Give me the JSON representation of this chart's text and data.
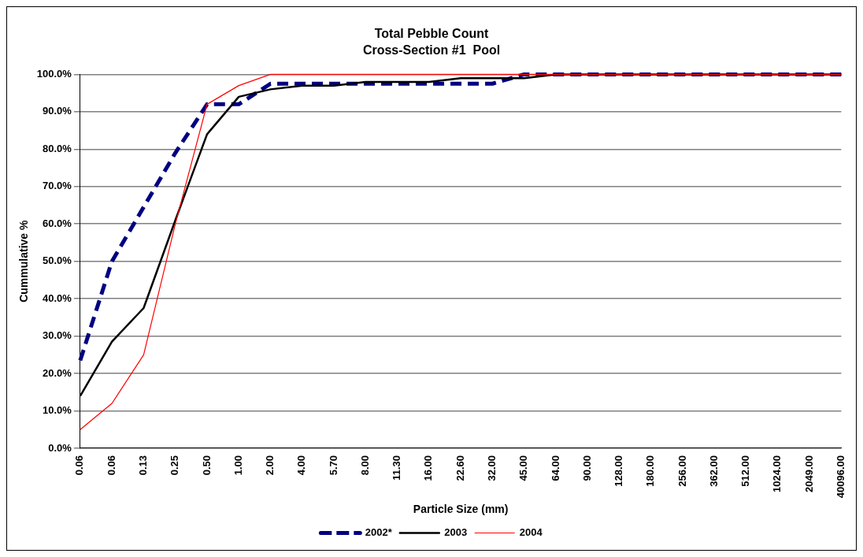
{
  "chart_data": {
    "type": "line",
    "title": "Total Pebble Count",
    "subtitle": "Cross-Section #1  Pool",
    "xlabel": "Particle Size (mm)",
    "ylabel": "Cummulative %",
    "categories": [
      "0.06",
      "0.06",
      "0.13",
      "0.25",
      "0.50",
      "1.00",
      "2.00",
      "4.00",
      "5.70",
      "8.00",
      "11.30",
      "16.00",
      "22.60",
      "32.00",
      "45.00",
      "64.00",
      "90.00",
      "128.00",
      "180.00",
      "256.00",
      "362.00",
      "512.00",
      "1024.00",
      "2049.00",
      "40096.00"
    ],
    "series": [
      {
        "name": "2002*",
        "color": "#000080",
        "line_style": "dashed",
        "values": [
          23.5,
          50,
          64.5,
          79,
          92,
          92,
          97.5,
          97.5,
          97.5,
          97.5,
          97.5,
          97.5,
          97.5,
          97.5,
          100,
          100,
          100,
          100,
          100,
          100,
          100,
          100,
          100,
          100,
          100
        ]
      },
      {
        "name": "2003",
        "color": "#000000",
        "line_style": "solid",
        "values": [
          14,
          28.5,
          37.5,
          61,
          84,
          94,
          96,
          97,
          97,
          98,
          98,
          98,
          99,
          99,
          99,
          100,
          100,
          100,
          100,
          100,
          100,
          100,
          100,
          100,
          100
        ]
      },
      {
        "name": "2004",
        "color": "#ff0000",
        "line_style": "solid",
        "values": [
          5,
          12,
          25,
          60,
          92,
          97,
          100,
          100,
          100,
          100,
          100,
          100,
          100,
          100,
          100,
          100,
          100,
          100,
          100,
          100,
          100,
          100,
          100,
          100,
          100
        ]
      }
    ],
    "ylim": [
      0,
      100
    ],
    "yticks": [
      {
        "value": 0,
        "label": "0.0%"
      },
      {
        "value": 10,
        "label": "10.0%"
      },
      {
        "value": 20,
        "label": "20.0%"
      },
      {
        "value": 30,
        "label": "30.0%"
      },
      {
        "value": 40,
        "label": "40.0%"
      },
      {
        "value": 50,
        "label": "50.0%"
      },
      {
        "value": 60,
        "label": "60.0%"
      },
      {
        "value": 70,
        "label": "70.0%"
      },
      {
        "value": 80,
        "label": "80.0%"
      },
      {
        "value": 90,
        "label": "90.0%"
      },
      {
        "value": 100,
        "label": "100.0%"
      }
    ],
    "grid": "y",
    "legend": "bottom",
    "marker": "none"
  }
}
